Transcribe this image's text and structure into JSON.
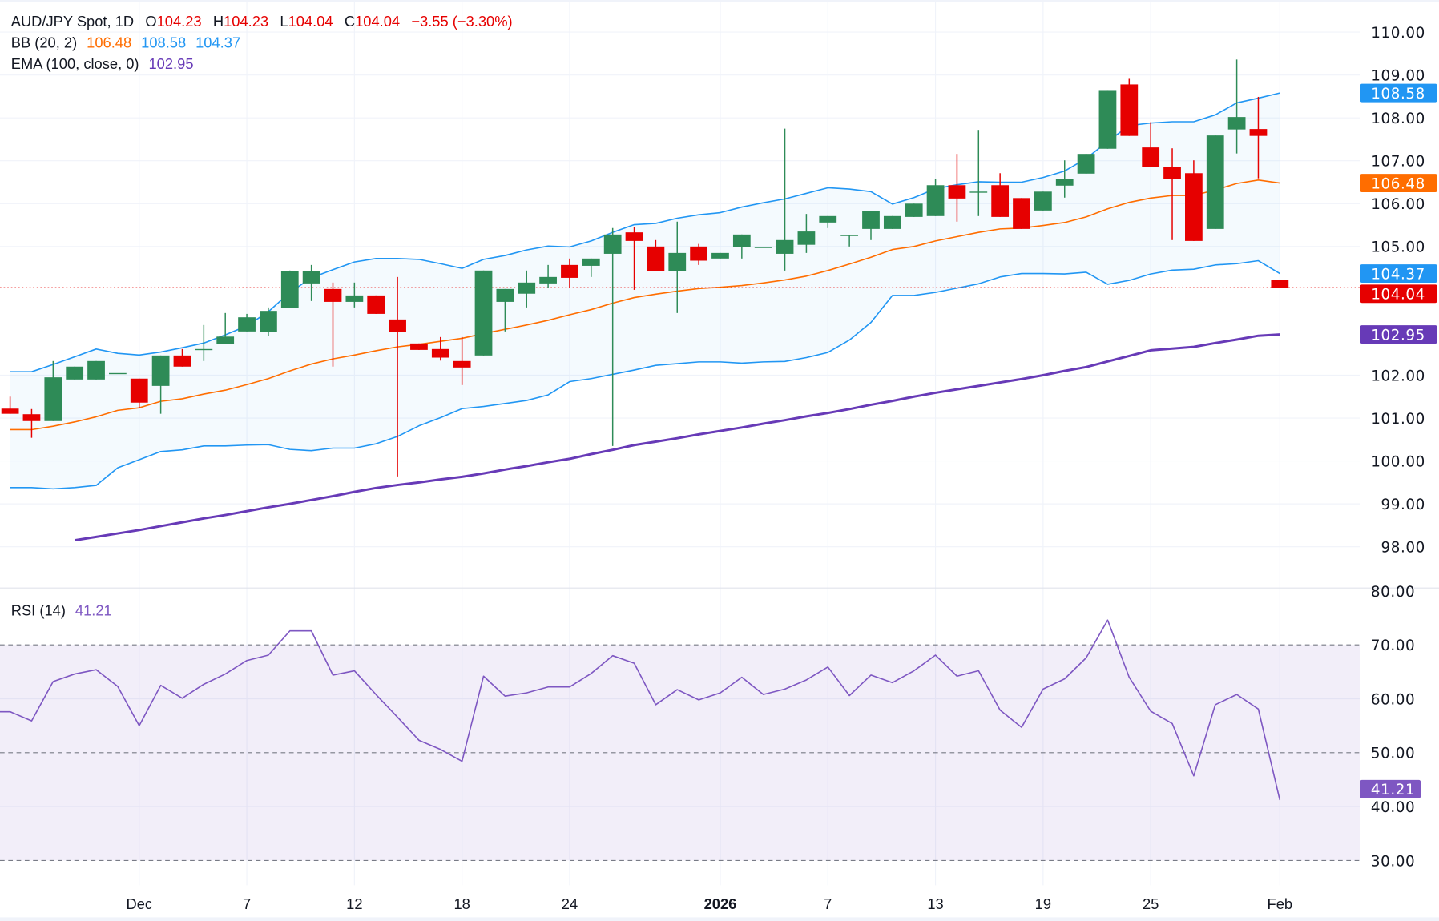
{
  "header": {
    "symbol": "AUD/JPY Spot, 1D",
    "o_label": "O",
    "open": "104.23",
    "h_label": "H",
    "high": "104.23",
    "l_label": "L",
    "low": "104.04",
    "c_label": "C",
    "close": "104.04",
    "change": "−3.55 (−3.30%)",
    "bb_label": "BB (20, 2)",
    "bb_middle": "106.48",
    "bb_upper": "108.58",
    "bb_lower": "104.37",
    "ema_label": "EMA (100, close, 0)",
    "ema_value": "102.95",
    "rsi_label": "RSI (14)",
    "rsi_value": "41.21"
  },
  "colors": {
    "up": "#2e8b57",
    "down": "#e60000",
    "bb_band": "#2196f3",
    "bb_middle": "#ff6d00",
    "ema": "#673ab7",
    "rsi": "#7e57c2",
    "last_price": "#e60000"
  },
  "chart_data": [
    {
      "type": "candlestick",
      "title": "AUD/JPY Spot, 1D",
      "ylim": [
        97.8,
        110.2
      ],
      "yticks": [
        "110.00",
        "109.00",
        "108.00",
        "107.00",
        "106.00",
        "105.00",
        "102.00",
        "101.00",
        "100.00",
        "99.00",
        "98.00"
      ],
      "ytick_values": [
        110,
        109,
        108,
        107,
        106,
        105,
        102,
        101,
        100,
        99,
        98
      ],
      "xticks": [
        {
          "index": 6,
          "label": "Dec",
          "bold": false
        },
        {
          "index": 11,
          "label": "7",
          "bold": false
        },
        {
          "index": 16,
          "label": "12",
          "bold": false
        },
        {
          "index": 21,
          "label": "18",
          "bold": false
        },
        {
          "index": 26,
          "label": "24",
          "bold": false
        },
        {
          "index": 33,
          "label": "2026",
          "bold": true
        },
        {
          "index": 38,
          "label": "7",
          "bold": false
        },
        {
          "index": 43,
          "label": "13",
          "bold": false
        },
        {
          "index": 48,
          "label": "19",
          "bold": false
        },
        {
          "index": 53,
          "label": "25",
          "bold": false
        },
        {
          "index": 59,
          "label": "Feb",
          "bold": false
        }
      ],
      "grid": true,
      "ohlc": [
        [
          101.22,
          101.5,
          101.1,
          101.1
        ],
        [
          101.09,
          101.21,
          100.54,
          100.93
        ],
        [
          100.93,
          102.33,
          100.93,
          101.95
        ],
        [
          101.9,
          102.2,
          101.9,
          102.2
        ],
        [
          101.9,
          102.33,
          101.9,
          102.33
        ],
        [
          102.05,
          102.05,
          102.05,
          102.05
        ],
        [
          101.92,
          101.92,
          101.24,
          101.36
        ],
        [
          101.75,
          102.46,
          101.1,
          102.46
        ],
        [
          102.46,
          102.61,
          102.2,
          102.2
        ],
        [
          102.61,
          103.17,
          102.33,
          102.61
        ],
        [
          102.72,
          103.45,
          102.72,
          102.9
        ],
        [
          103.02,
          103.43,
          103.02,
          103.35
        ],
        [
          103.0,
          103.58,
          102.91,
          103.5
        ],
        [
          103.56,
          104.44,
          103.56,
          104.42
        ],
        [
          104.14,
          104.57,
          103.73,
          104.42
        ],
        [
          104.01,
          104.16,
          102.2,
          103.71
        ],
        [
          103.71,
          104.16,
          103.58,
          103.86
        ],
        [
          103.86,
          103.86,
          103.43,
          103.43
        ],
        [
          103.3,
          104.29,
          99.64,
          103.0
        ],
        [
          102.74,
          102.74,
          102.59,
          102.59
        ],
        [
          102.61,
          102.89,
          102.34,
          102.41
        ],
        [
          102.33,
          102.89,
          101.77,
          102.18
        ],
        [
          102.46,
          104.44,
          102.46,
          104.44
        ],
        [
          103.71,
          104.01,
          103.02,
          104.01
        ],
        [
          103.9,
          104.44,
          103.58,
          104.16
        ],
        [
          104.14,
          104.57,
          104.03,
          104.29
        ],
        [
          104.57,
          104.72,
          104.03,
          104.27
        ],
        [
          104.55,
          104.72,
          104.29,
          104.72
        ],
        [
          104.83,
          105.43,
          100.35,
          105.28
        ],
        [
          105.33,
          105.46,
          103.99,
          105.13
        ],
        [
          105.0,
          105.15,
          104.42,
          104.42
        ],
        [
          104.42,
          105.58,
          103.45,
          104.85
        ],
        [
          105.0,
          105.06,
          104.57,
          104.67
        ],
        [
          104.72,
          104.85,
          104.72,
          104.85
        ],
        [
          104.98,
          105.28,
          104.72,
          105.28
        ],
        [
          104.99,
          104.99,
          104.99,
          104.99
        ],
        [
          104.83,
          107.75,
          104.44,
          105.15
        ],
        [
          105.04,
          105.76,
          104.85,
          105.35
        ],
        [
          105.56,
          105.71,
          105.43,
          105.71
        ],
        [
          105.27,
          105.27,
          105.0,
          105.27
        ],
        [
          105.41,
          105.82,
          105.15,
          105.82
        ],
        [
          105.41,
          105.71,
          105.41,
          105.71
        ],
        [
          105.69,
          106.0,
          105.69,
          106.0
        ],
        [
          105.71,
          106.58,
          105.71,
          106.43
        ],
        [
          106.43,
          107.16,
          105.58,
          106.12
        ],
        [
          106.28,
          107.72,
          105.71,
          106.28
        ],
        [
          106.43,
          106.71,
          105.69,
          105.69
        ],
        [
          106.13,
          106.13,
          105.41,
          105.41
        ],
        [
          105.84,
          106.28,
          105.84,
          106.28
        ],
        [
          106.42,
          107.01,
          106.14,
          106.58
        ],
        [
          106.7,
          107.16,
          106.7,
          107.16
        ],
        [
          107.28,
          108.63,
          107.28,
          108.63
        ],
        [
          108.78,
          108.91,
          107.58,
          107.58
        ],
        [
          107.31,
          107.9,
          106.85,
          106.85
        ],
        [
          106.86,
          107.29,
          105.15,
          106.57
        ],
        [
          106.71,
          107.01,
          105.13,
          105.13
        ],
        [
          105.41,
          107.59,
          105.41,
          107.59
        ],
        [
          107.73,
          109.36,
          107.17,
          108.02
        ],
        [
          107.74,
          108.49,
          106.59,
          107.58
        ],
        [
          104.23,
          104.23,
          104.04,
          104.04
        ]
      ],
      "bb_upper": [
        102.08,
        102.08,
        102.25,
        102.43,
        102.61,
        102.51,
        102.47,
        102.54,
        102.64,
        102.75,
        102.94,
        103.15,
        103.48,
        103.93,
        104.27,
        104.46,
        104.64,
        104.72,
        104.72,
        104.7,
        104.6,
        104.49,
        104.7,
        104.79,
        104.92,
        105.01,
        104.99,
        105.13,
        105.33,
        105.51,
        105.54,
        105.66,
        105.74,
        105.79,
        105.92,
        106.02,
        106.11,
        106.24,
        106.37,
        106.34,
        106.28,
        105.99,
        106.14,
        106.35,
        106.44,
        106.51,
        106.5,
        106.5,
        106.61,
        106.76,
        107.05,
        107.45,
        107.82,
        107.88,
        107.91,
        107.91,
        108.07,
        108.35,
        108.46,
        108.58
      ],
      "bb_middle": [
        100.73,
        100.73,
        100.81,
        100.91,
        101.03,
        101.18,
        101.24,
        101.39,
        101.45,
        101.56,
        101.65,
        101.78,
        101.92,
        102.1,
        102.26,
        102.38,
        102.47,
        102.57,
        102.66,
        102.72,
        102.79,
        102.86,
        102.97,
        103.07,
        103.17,
        103.28,
        103.41,
        103.53,
        103.68,
        103.81,
        103.89,
        103.96,
        104.02,
        104.05,
        104.09,
        104.15,
        104.22,
        104.31,
        104.44,
        104.59,
        104.75,
        104.93,
        105.0,
        105.13,
        105.23,
        105.33,
        105.41,
        105.43,
        105.49,
        105.56,
        105.69,
        105.88,
        106.03,
        106.13,
        106.19,
        106.19,
        106.32,
        106.47,
        106.55,
        106.48
      ],
      "bb_lower": [
        99.38,
        99.38,
        99.35,
        99.38,
        99.43,
        99.84,
        100.03,
        100.22,
        100.26,
        100.35,
        100.35,
        100.37,
        100.38,
        100.27,
        100.24,
        100.3,
        100.3,
        100.4,
        100.57,
        100.82,
        101.01,
        101.22,
        101.27,
        101.34,
        101.41,
        101.54,
        101.85,
        101.92,
        102.02,
        102.12,
        102.23,
        102.27,
        102.31,
        102.31,
        102.28,
        102.31,
        102.32,
        102.41,
        102.53,
        102.82,
        103.23,
        103.86,
        103.86,
        103.93,
        104.03,
        104.13,
        104.29,
        104.37,
        104.37,
        104.36,
        104.4,
        104.12,
        104.21,
        104.36,
        104.45,
        104.47,
        104.57,
        104.6,
        104.67,
        104.37
      ],
      "ema": [
        null,
        null,
        null,
        98.15,
        98.23,
        98.31,
        98.39,
        98.48,
        98.57,
        98.66,
        98.74,
        98.83,
        98.92,
        99.0,
        99.09,
        99.18,
        99.28,
        99.37,
        99.44,
        99.5,
        99.57,
        99.63,
        99.71,
        99.8,
        99.88,
        99.97,
        100.05,
        100.16,
        100.26,
        100.37,
        100.45,
        100.53,
        100.62,
        100.7,
        100.78,
        100.87,
        100.95,
        101.04,
        101.12,
        101.21,
        101.31,
        101.4,
        101.5,
        101.59,
        101.67,
        101.75,
        101.83,
        101.91,
        102.0,
        102.1,
        102.19,
        102.32,
        102.45,
        102.58,
        102.62,
        102.66,
        102.75,
        102.83,
        102.92,
        102.95
      ],
      "last_price": 104.04,
      "price_tags": [
        {
          "value": 108.58,
          "label": "108.58",
          "color": "#2196f3"
        },
        {
          "value": 106.48,
          "label": "106.48",
          "color": "#ff6d00"
        },
        {
          "value": 104.37,
          "label": "104.37",
          "color": "#2196f3"
        },
        {
          "value": 104.04,
          "label": "104.04",
          "color": "#e60000"
        },
        {
          "value": 102.95,
          "label": "102.95",
          "color": "#673ab7"
        }
      ]
    },
    {
      "type": "line",
      "title": "RSI (14)",
      "ylim": [
        30,
        80
      ],
      "yticks": [
        "80.00",
        "70.00",
        "60.00",
        "50.00",
        "40.00",
        "30.00"
      ],
      "ytick_values": [
        80,
        70,
        60,
        50,
        40,
        30
      ],
      "bands": [
        30,
        50,
        70
      ],
      "values": [
        57.6,
        55.9,
        63.2,
        64.6,
        65.4,
        62.3,
        55.0,
        62.5,
        60.1,
        62.7,
        64.6,
        67.1,
        68.1,
        72.6,
        72.6,
        64.4,
        65.2,
        60.8,
        56.6,
        52.3,
        50.6,
        48.4,
        64.2,
        60.5,
        61.1,
        62.2,
        62.2,
        64.7,
        68.0,
        66.6,
        58.9,
        61.7,
        59.8,
        61.1,
        64.0,
        60.8,
        61.8,
        63.5,
        65.9,
        60.6,
        64.4,
        63.0,
        65.2,
        68.1,
        64.2,
        65.2,
        57.9,
        54.7,
        61.8,
        63.7,
        67.6,
        74.6,
        64.0,
        57.7,
        55.4,
        45.7,
        58.9,
        60.8,
        58.1,
        41.21
      ],
      "last_tag": {
        "value": 41.21,
        "label": "41.21",
        "color": "#7e57c2"
      }
    }
  ]
}
